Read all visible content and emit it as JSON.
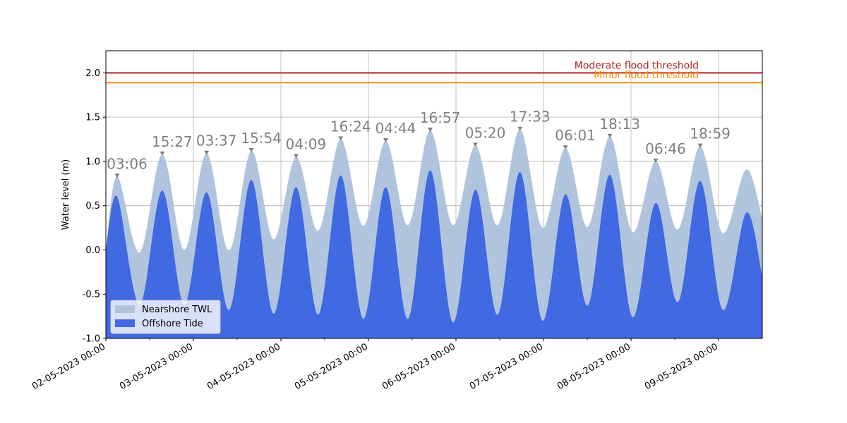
{
  "chart_data": {
    "type": "area",
    "ylabel": "Water level (m)",
    "xlim": [
      "02-05-2023 00:00",
      "09-05-2023 12:00"
    ],
    "ylim": [
      -1.0,
      2.25
    ],
    "x_ticks": [
      "02-05-2023 00:00",
      "03-05-2023 00:00",
      "04-05-2023 00:00",
      "05-05-2023 00:00",
      "06-05-2023 00:00",
      "07-05-2023 00:00",
      "08-05-2023 00:00",
      "09-05-2023 00:00"
    ],
    "y_ticks": [
      "-1.0",
      "-0.5",
      "0.0",
      "0.5",
      "1.0",
      "1.5",
      "2.0"
    ],
    "grid": true,
    "legend_position": "lower-left",
    "colors": {
      "twl": "#b0c4de",
      "tide": "#4169e1",
      "moderate": "#b22222",
      "minor": "#ff8c00",
      "peak": "#808080"
    },
    "thresholds": [
      {
        "name": "Moderate flood threshold",
        "value": 2.0,
        "color": "#b22222"
      },
      {
        "name": "Minor flood threshold",
        "value": 1.89,
        "color": "#ff8c00"
      }
    ],
    "series": [
      {
        "name": "Nearshore TWL",
        "x": [
          "02-05-2023 00:00",
          "02-05-2023 03:06",
          "02-05-2023 09:15",
          "02-05-2023 15:27",
          "02-05-2023 21:30",
          "03-05-2023 03:37",
          "03-05-2023 09:45",
          "03-05-2023 15:54",
          "03-05-2023 22:00",
          "04-05-2023 04:09",
          "04-05-2023 10:15",
          "04-05-2023 16:24",
          "04-05-2023 22:35",
          "05-05-2023 04:44",
          "05-05-2023 10:50",
          "05-05-2023 16:57",
          "05-05-2023 23:10",
          "06-05-2023 05:20",
          "06-05-2023 11:25",
          "06-05-2023 17:33",
          "06-05-2023 23:45",
          "07-05-2023 06:01",
          "07-05-2023 12:05",
          "07-05-2023 18:13",
          "08-05-2023 00:25",
          "08-05-2023 06:46",
          "08-05-2023 12:50",
          "08-05-2023 18:59",
          "09-05-2023 01:10",
          "09-05-2023 07:35",
          "09-05-2023 12:00"
        ],
        "values": [
          0.0,
          0.83,
          -0.03,
          1.08,
          0.0,
          1.09,
          -0.01,
          1.12,
          0.12,
          1.05,
          0.22,
          1.25,
          0.27,
          1.23,
          0.28,
          1.35,
          0.28,
          1.18,
          0.28,
          1.36,
          0.25,
          1.15,
          0.26,
          1.28,
          0.2,
          1.0,
          0.23,
          1.17,
          0.19,
          0.91,
          0.35
        ]
      },
      {
        "name": "Offshore Tide",
        "x": [
          "02-05-2023 00:00",
          "02-05-2023 03:06",
          "02-05-2023 09:15",
          "02-05-2023 15:27",
          "02-05-2023 21:30",
          "03-05-2023 03:37",
          "03-05-2023 09:45",
          "03-05-2023 15:54",
          "03-05-2023 22:00",
          "04-05-2023 04:09",
          "04-05-2023 10:15",
          "04-05-2023 16:24",
          "04-05-2023 22:35",
          "05-05-2023 04:44",
          "05-05-2023 10:50",
          "05-05-2023 16:57",
          "05-05-2023 23:10",
          "06-05-2023 05:20",
          "06-05-2023 11:25",
          "06-05-2023 17:33",
          "06-05-2023 23:45",
          "07-05-2023 06:01",
          "07-05-2023 12:05",
          "07-05-2023 18:13",
          "08-05-2023 00:25",
          "08-05-2023 06:46",
          "08-05-2023 12:50",
          "08-05-2023 18:59",
          "09-05-2023 01:10",
          "09-05-2023 07:35",
          "09-05-2023 12:00"
        ],
        "values": [
          0.0,
          0.6,
          -0.62,
          0.67,
          -0.62,
          0.65,
          -0.68,
          0.79,
          -0.72,
          0.71,
          -0.73,
          0.84,
          -0.78,
          0.71,
          -0.78,
          0.9,
          -0.82,
          0.68,
          -0.73,
          0.88,
          -0.8,
          0.63,
          -0.63,
          0.85,
          -0.76,
          0.53,
          -0.59,
          0.78,
          -0.68,
          0.42,
          -0.3
        ]
      }
    ],
    "peaks": [
      {
        "label": "03:06",
        "x": "02-05-2023 03:06",
        "y": 0.83
      },
      {
        "label": "15:27",
        "x": "02-05-2023 15:27",
        "y": 1.08
      },
      {
        "label": "03:37",
        "x": "03-05-2023 03:37",
        "y": 1.09
      },
      {
        "label": "15:54",
        "x": "03-05-2023 15:54",
        "y": 1.12
      },
      {
        "label": "04:09",
        "x": "04-05-2023 04:09",
        "y": 1.05
      },
      {
        "label": "16:24",
        "x": "04-05-2023 16:24",
        "y": 1.25
      },
      {
        "label": "04:44",
        "x": "05-05-2023 04:44",
        "y": 1.23
      },
      {
        "label": "16:57",
        "x": "05-05-2023 16:57",
        "y": 1.35
      },
      {
        "label": "05:20",
        "x": "06-05-2023 05:20",
        "y": 1.18
      },
      {
        "label": "17:33",
        "x": "06-05-2023 17:33",
        "y": 1.36
      },
      {
        "label": "06:01",
        "x": "07-05-2023 06:01",
        "y": 1.15
      },
      {
        "label": "18:13",
        "x": "07-05-2023 18:13",
        "y": 1.28
      },
      {
        "label": "06:46",
        "x": "08-05-2023 06:46",
        "y": 1.0
      },
      {
        "label": "18:59",
        "x": "08-05-2023 18:59",
        "y": 1.17
      }
    ]
  }
}
